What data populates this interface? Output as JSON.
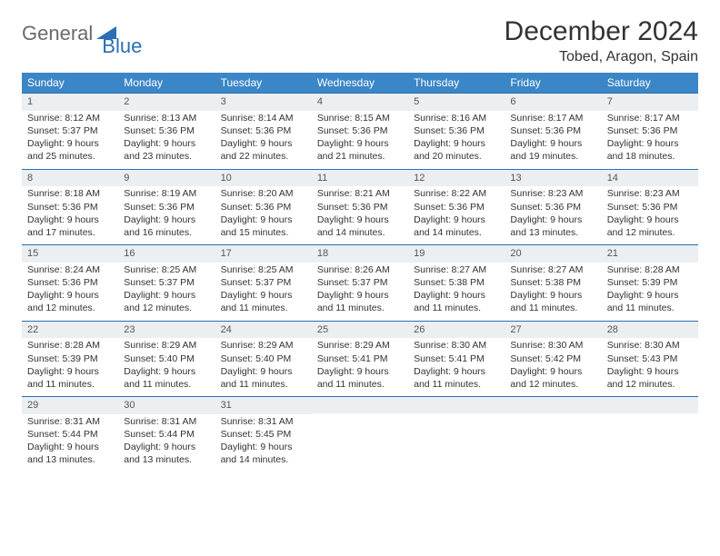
{
  "brand": {
    "word1": "General",
    "word2": "Blue"
  },
  "title": "December 2024",
  "location": "Tobed, Aragon, Spain",
  "colors": {
    "header_bg": "#3b86c7",
    "rule": "#2a6fb5",
    "daynum_bg": "#eceff1",
    "text": "#333333",
    "logo_gray": "#6a6a6a",
    "logo_blue": "#2a6fb5",
    "background": "#ffffff"
  },
  "day_names": [
    "Sunday",
    "Monday",
    "Tuesday",
    "Wednesday",
    "Thursday",
    "Friday",
    "Saturday"
  ],
  "labels": {
    "sunrise": "Sunrise:",
    "sunset": "Sunset:",
    "daylight": "Daylight:"
  },
  "weeks": [
    [
      {
        "n": 1,
        "sunrise": "8:12 AM",
        "sunset": "5:37 PM",
        "daylight": "9 hours and 25 minutes."
      },
      {
        "n": 2,
        "sunrise": "8:13 AM",
        "sunset": "5:36 PM",
        "daylight": "9 hours and 23 minutes."
      },
      {
        "n": 3,
        "sunrise": "8:14 AM",
        "sunset": "5:36 PM",
        "daylight": "9 hours and 22 minutes."
      },
      {
        "n": 4,
        "sunrise": "8:15 AM",
        "sunset": "5:36 PM",
        "daylight": "9 hours and 21 minutes."
      },
      {
        "n": 5,
        "sunrise": "8:16 AM",
        "sunset": "5:36 PM",
        "daylight": "9 hours and 20 minutes."
      },
      {
        "n": 6,
        "sunrise": "8:17 AM",
        "sunset": "5:36 PM",
        "daylight": "9 hours and 19 minutes."
      },
      {
        "n": 7,
        "sunrise": "8:17 AM",
        "sunset": "5:36 PM",
        "daylight": "9 hours and 18 minutes."
      }
    ],
    [
      {
        "n": 8,
        "sunrise": "8:18 AM",
        "sunset": "5:36 PM",
        "daylight": "9 hours and 17 minutes."
      },
      {
        "n": 9,
        "sunrise": "8:19 AM",
        "sunset": "5:36 PM",
        "daylight": "9 hours and 16 minutes."
      },
      {
        "n": 10,
        "sunrise": "8:20 AM",
        "sunset": "5:36 PM",
        "daylight": "9 hours and 15 minutes."
      },
      {
        "n": 11,
        "sunrise": "8:21 AM",
        "sunset": "5:36 PM",
        "daylight": "9 hours and 14 minutes."
      },
      {
        "n": 12,
        "sunrise": "8:22 AM",
        "sunset": "5:36 PM",
        "daylight": "9 hours and 14 minutes."
      },
      {
        "n": 13,
        "sunrise": "8:23 AM",
        "sunset": "5:36 PM",
        "daylight": "9 hours and 13 minutes."
      },
      {
        "n": 14,
        "sunrise": "8:23 AM",
        "sunset": "5:36 PM",
        "daylight": "9 hours and 12 minutes."
      }
    ],
    [
      {
        "n": 15,
        "sunrise": "8:24 AM",
        "sunset": "5:36 PM",
        "daylight": "9 hours and 12 minutes."
      },
      {
        "n": 16,
        "sunrise": "8:25 AM",
        "sunset": "5:37 PM",
        "daylight": "9 hours and 12 minutes."
      },
      {
        "n": 17,
        "sunrise": "8:25 AM",
        "sunset": "5:37 PM",
        "daylight": "9 hours and 11 minutes."
      },
      {
        "n": 18,
        "sunrise": "8:26 AM",
        "sunset": "5:37 PM",
        "daylight": "9 hours and 11 minutes."
      },
      {
        "n": 19,
        "sunrise": "8:27 AM",
        "sunset": "5:38 PM",
        "daylight": "9 hours and 11 minutes."
      },
      {
        "n": 20,
        "sunrise": "8:27 AM",
        "sunset": "5:38 PM",
        "daylight": "9 hours and 11 minutes."
      },
      {
        "n": 21,
        "sunrise": "8:28 AM",
        "sunset": "5:39 PM",
        "daylight": "9 hours and 11 minutes."
      }
    ],
    [
      {
        "n": 22,
        "sunrise": "8:28 AM",
        "sunset": "5:39 PM",
        "daylight": "9 hours and 11 minutes."
      },
      {
        "n": 23,
        "sunrise": "8:29 AM",
        "sunset": "5:40 PM",
        "daylight": "9 hours and 11 minutes."
      },
      {
        "n": 24,
        "sunrise": "8:29 AM",
        "sunset": "5:40 PM",
        "daylight": "9 hours and 11 minutes."
      },
      {
        "n": 25,
        "sunrise": "8:29 AM",
        "sunset": "5:41 PM",
        "daylight": "9 hours and 11 minutes."
      },
      {
        "n": 26,
        "sunrise": "8:30 AM",
        "sunset": "5:41 PM",
        "daylight": "9 hours and 11 minutes."
      },
      {
        "n": 27,
        "sunrise": "8:30 AM",
        "sunset": "5:42 PM",
        "daylight": "9 hours and 12 minutes."
      },
      {
        "n": 28,
        "sunrise": "8:30 AM",
        "sunset": "5:43 PM",
        "daylight": "9 hours and 12 minutes."
      }
    ],
    [
      {
        "n": 29,
        "sunrise": "8:31 AM",
        "sunset": "5:44 PM",
        "daylight": "9 hours and 13 minutes."
      },
      {
        "n": 30,
        "sunrise": "8:31 AM",
        "sunset": "5:44 PM",
        "daylight": "9 hours and 13 minutes."
      },
      {
        "n": 31,
        "sunrise": "8:31 AM",
        "sunset": "5:45 PM",
        "daylight": "9 hours and 14 minutes."
      },
      null,
      null,
      null,
      null
    ]
  ]
}
